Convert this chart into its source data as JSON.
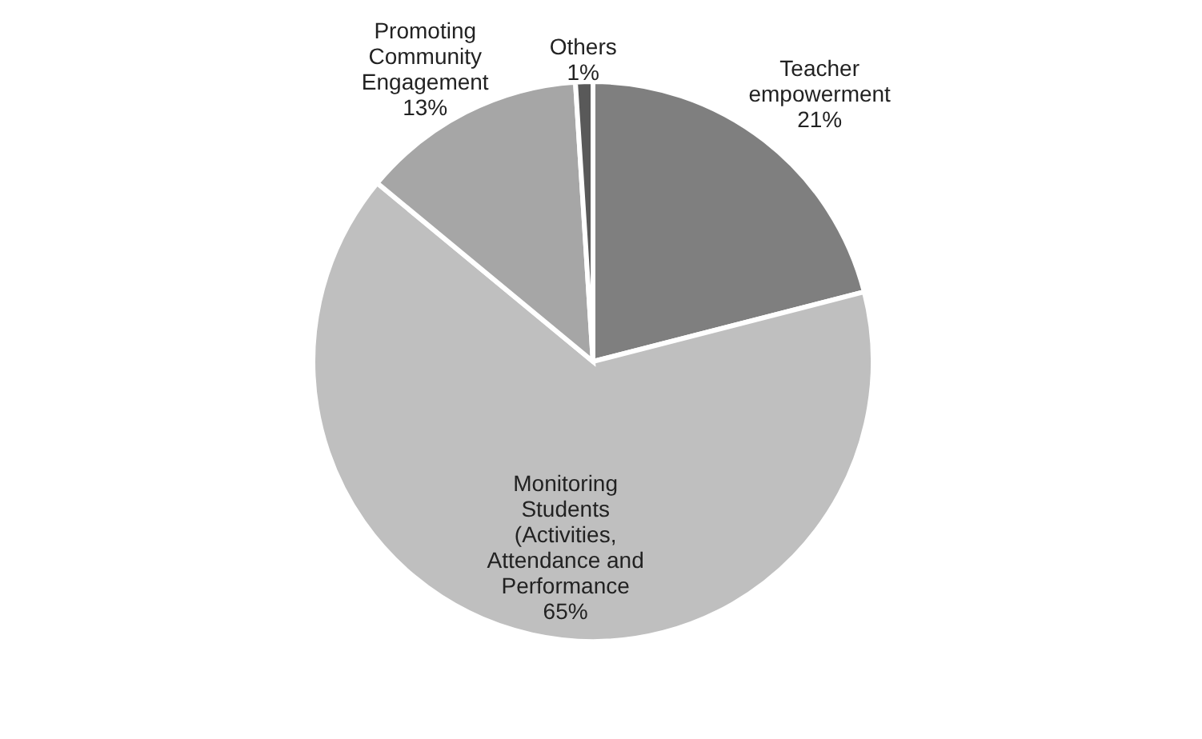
{
  "chart_data": {
    "type": "pie",
    "categories": [
      "Teacher empowerment",
      "Monitoring Students (Activities, Attendance and Performance",
      "Promoting Community Engagement",
      "Others"
    ],
    "values": [
      21,
      65,
      13,
      1
    ],
    "value_labels": [
      "21%",
      "65%",
      "13%",
      "1%"
    ],
    "colors": [
      "#7f7f7f",
      "#bfbfbf",
      "#a6a6a6",
      "#595959"
    ],
    "legend": false
  }
}
